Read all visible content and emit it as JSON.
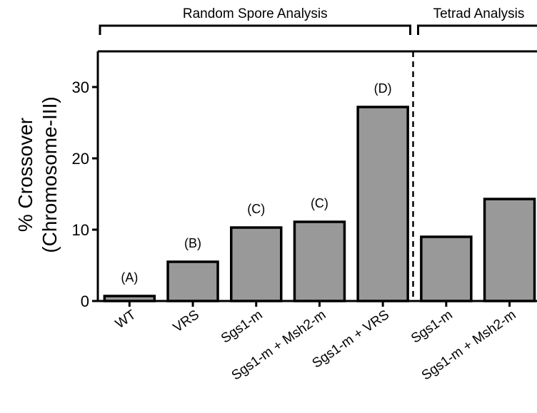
{
  "chart_data": {
    "type": "bar",
    "ylabel_line1": "% Crossover",
    "ylabel_line2": "(Chromosome-III)",
    "ylim": [
      0,
      35
    ],
    "yticks": [
      "0",
      "10",
      "20",
      "30"
    ],
    "yticks_values": [
      0,
      10,
      20,
      30
    ],
    "categories": [
      "WT",
      "VRS",
      "Sgs1-m",
      "Sgs1-m + Msh2-m",
      "Sgs1-m + VRS",
      "Sgs1-m",
      "Sgs1-m + Msh2-m"
    ],
    "values": [
      0.7,
      5.5,
      10.3,
      11.1,
      27.2,
      9.0,
      14.3
    ],
    "bar_labels": [
      "(A)",
      "(B)",
      "(C)",
      "(C)",
      "(D)",
      "",
      ""
    ],
    "groups": [
      {
        "label": "Random Spore Analysis",
        "first": 0,
        "last": 4
      },
      {
        "label": "Tetrad Analysis",
        "first": 5,
        "last": 6
      }
    ],
    "bar_color": "#999999",
    "grid": false
  }
}
